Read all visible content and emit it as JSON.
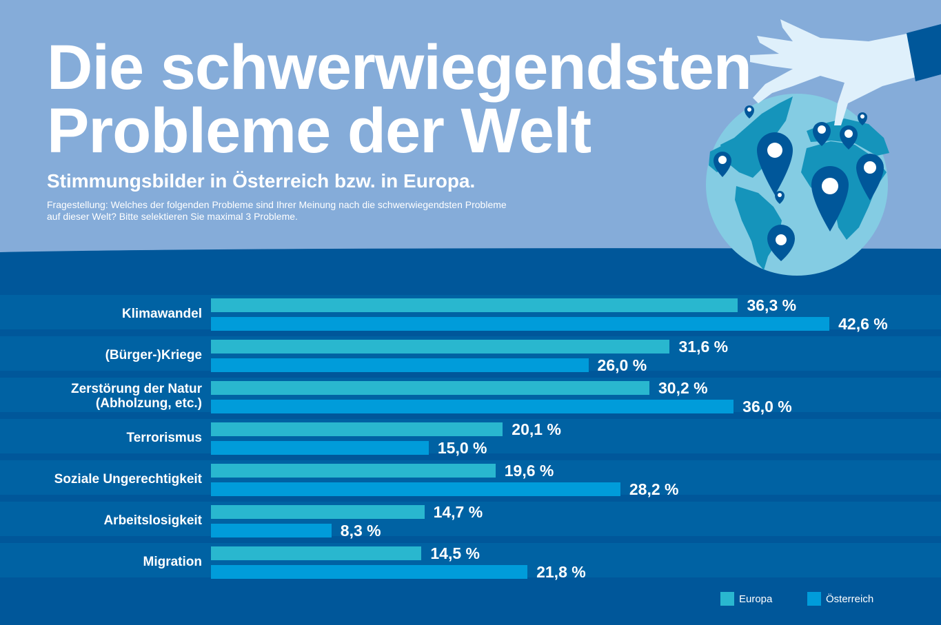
{
  "header": {
    "title_line1": "Die schwerwiegendsten",
    "title_line2": "Probleme der Welt",
    "subtitle": "Stimmungsbilder in Österreich bzw. in Europa.",
    "question_line1": "Fragestellung: Welches der folgenden Probleme sind Ihrer Meinung nach die schwerwiegendsten Probleme",
    "question_line2": "auf dieser Welt?  Bitte selektieren Sie maximal 3 Probleme."
  },
  "illustration": {
    "icons": [
      "globe-icon",
      "hand-icon",
      "map-pin-icon"
    ]
  },
  "colors": {
    "background_top": "#85acd9",
    "background_bottom": "#00579a",
    "row_band": "#0062a3",
    "europa": "#29b7cf",
    "oesterreich": "#009cda"
  },
  "chart_data": {
    "type": "bar",
    "orientation": "horizontal",
    "title": "Die schwerwiegendsten Probleme der Welt",
    "subtitle": "Stimmungsbilder in Österreich bzw. in Europa.",
    "xlabel": "",
    "ylabel": "",
    "unit": "%",
    "xlim": [
      0,
      45
    ],
    "grid": false,
    "legend_position": "bottom-right",
    "categories": [
      "Klimawandel",
      "(Bürger-)Kriege",
      "Zerstörung der Natur (Abholzung, etc.)",
      "Terrorismus",
      "Soziale Ungerechtigkeit",
      "Arbeitslosigkeit",
      "Migration"
    ],
    "category_lines": [
      [
        "Klimawandel"
      ],
      [
        "(Bürger-)Kriege"
      ],
      [
        "Zerstörung der Natur",
        "(Abholzung, etc.)"
      ],
      [
        "Terrorismus"
      ],
      [
        "Soziale Ungerechtigkeit"
      ],
      [
        "Arbeitslosigkeit"
      ],
      [
        "Migration"
      ]
    ],
    "series": [
      {
        "name": "Europa",
        "color": "#29b7cf",
        "values": [
          36.3,
          31.6,
          30.2,
          20.1,
          19.6,
          14.7,
          14.5
        ],
        "labels": [
          "36,3 %",
          "31,6 %",
          "30,2 %",
          "20,1 %",
          "19,6 %",
          "14,7 %",
          "14,5 %"
        ]
      },
      {
        "name": "Österreich",
        "color": "#009cda",
        "values": [
          42.6,
          26.0,
          36.0,
          15.0,
          28.2,
          8.3,
          21.8
        ],
        "labels": [
          "42,6 %",
          "26,0 %",
          "36,0 %",
          "15,0 %",
          "28,2 %",
          "8,3 %",
          "21,8 %"
        ]
      }
    ]
  }
}
